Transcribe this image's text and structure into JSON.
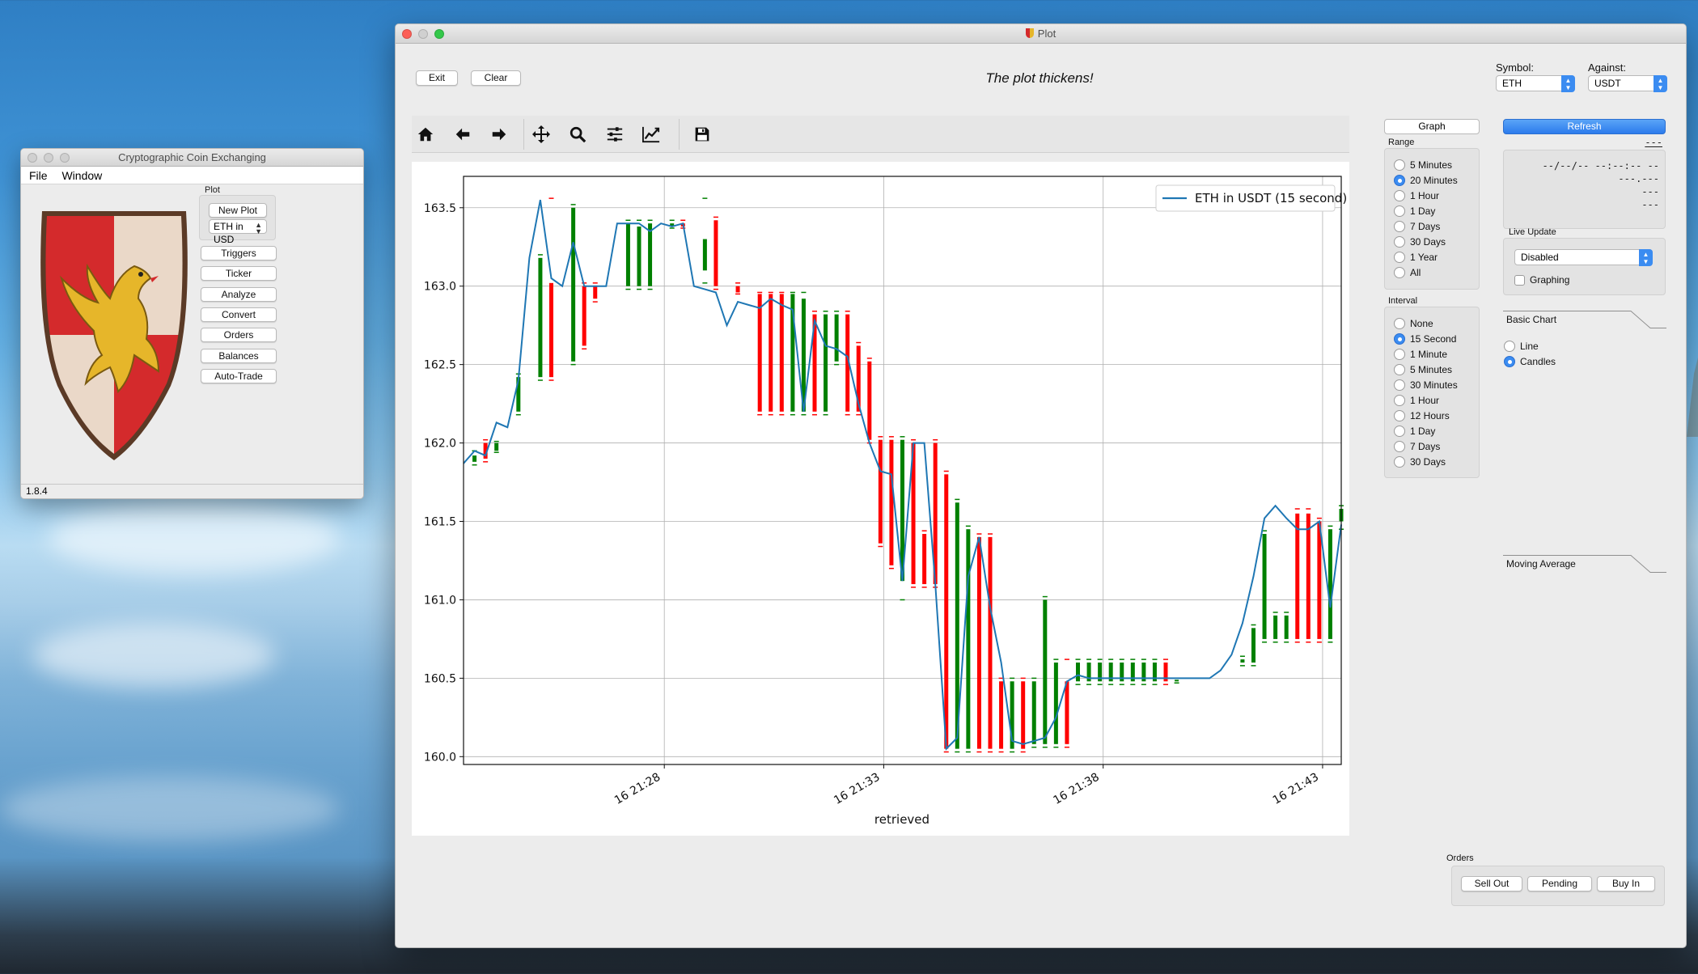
{
  "coin_window": {
    "title": "Cryptographic Coin Exchanging",
    "menu": [
      "File",
      "Window"
    ],
    "plot_group_label": "Plot",
    "new_plot_label": "New Plot",
    "plot_selector_value": "ETH in USD",
    "buttons": [
      "Triggers",
      "Ticker",
      "Analyze",
      "Convert",
      "Orders",
      "Balances",
      "Auto-Trade"
    ],
    "version": "1.8.4"
  },
  "plot_window": {
    "title": "Plot",
    "exit_label": "Exit",
    "clear_label": "Clear",
    "headline": "The plot thickens!",
    "symbol_label": "Symbol:",
    "symbol_value": "ETH",
    "against_label": "Against:",
    "against_value": "USDT",
    "graph_tab_label": "Graph",
    "range_label": "Range",
    "range_options": [
      "5 Minutes",
      "20 Minutes",
      "1 Hour",
      "1 Day",
      "7 Days",
      "30 Days",
      "1 Year",
      "All"
    ],
    "range_selected": 1,
    "interval_label": "Interval",
    "interval_options": [
      "None",
      "15 Second",
      "1 Minute",
      "5 Minutes",
      "30 Minutes",
      "1 Hour",
      "12 Hours",
      "1 Day",
      "7 Days",
      "30 Days"
    ],
    "interval_selected": 1,
    "refresh_label": "Refresh",
    "refresh_sub": "---",
    "info_lines": [
      "--/--/-- --:--:-- --",
      "---.---",
      "---",
      "---"
    ],
    "live_update_label": "Live Update",
    "live_update_value": "Disabled",
    "graphing_label": "Graphing",
    "basic_chart_label": "Basic Chart",
    "basic_chart_options": [
      "Line",
      "Candles"
    ],
    "basic_chart_selected": 1,
    "moving_average_label": "Moving Average",
    "orders_label": "Orders",
    "sell_out_label": "Sell Out",
    "pending_label": "Pending",
    "buy_in_label": "Buy In"
  },
  "chart_data": {
    "type": "line",
    "title": "",
    "xlabel": "retrieved",
    "ylabel": "",
    "ylim": [
      159.95,
      163.7
    ],
    "xlim": [
      0,
      80
    ],
    "yticks": [
      160.0,
      160.5,
      161.0,
      161.5,
      162.0,
      162.5,
      163.0,
      163.5
    ],
    "xticks": [
      {
        "x": 18.3,
        "label": "16 21:28"
      },
      {
        "x": 38.3,
        "label": "16 21:33"
      },
      {
        "x": 58.3,
        "label": "16 21:38"
      },
      {
        "x": 78.3,
        "label": "16 21:43"
      }
    ],
    "legend": {
      "position": "top-right",
      "entries": [
        "ETH in USDT (15 second)"
      ]
    },
    "grid": true,
    "colors": {
      "line": "#1f77b4",
      "up": "#008000",
      "down": "#ff0000"
    },
    "series": [
      {
        "name": "ETH in USDT (15 second)",
        "values": [
          161.87,
          161.95,
          161.92,
          162.13,
          162.1,
          162.4,
          163.18,
          163.55,
          163.05,
          163.0,
          163.28,
          163.0,
          163.0,
          163.0,
          163.4,
          163.4,
          163.4,
          163.35,
          163.4,
          163.38,
          163.4,
          163.0,
          162.98,
          162.96,
          162.75,
          162.9,
          162.88,
          162.86,
          162.92,
          162.88,
          162.85,
          162.2,
          162.78,
          162.62,
          162.6,
          162.55,
          162.25,
          162.0,
          161.82,
          161.8,
          161.12,
          162.0,
          162.0,
          161.1,
          160.05,
          160.12,
          161.15,
          161.4,
          160.95,
          160.6,
          160.1,
          160.08,
          160.1,
          160.12,
          160.25,
          160.48,
          160.52,
          160.5,
          160.5,
          160.5,
          160.5,
          160.5,
          160.5,
          160.5,
          160.5,
          160.5,
          160.5,
          160.5,
          160.5,
          160.55,
          160.65,
          160.85,
          161.15,
          161.52,
          161.6,
          161.52,
          161.45,
          161.45,
          161.5,
          160.95,
          161.48
        ]
      }
    ],
    "candles": [
      {
        "i": 1,
        "o": 161.88,
        "c": 161.92,
        "h": 161.95,
        "l": 161.86
      },
      {
        "i": 2,
        "o": 162.0,
        "c": 161.9,
        "h": 162.02,
        "l": 161.88
      },
      {
        "i": 3,
        "o": 161.95,
        "c": 162.0,
        "h": 162.01,
        "l": 161.94
      },
      {
        "i": 5,
        "o": 162.2,
        "c": 162.42,
        "h": 162.44,
        "l": 162.18
      },
      {
        "i": 7,
        "o": 162.42,
        "c": 163.18,
        "h": 163.2,
        "l": 162.4
      },
      {
        "i": 8,
        "o": 163.02,
        "c": 162.42,
        "h": 163.56,
        "l": 162.4
      },
      {
        "i": 10,
        "o": 162.52,
        "c": 163.5,
        "h": 163.52,
        "l": 162.5
      },
      {
        "i": 11,
        "o": 163.0,
        "c": 162.62,
        "h": 163.02,
        "l": 162.6
      },
      {
        "i": 12,
        "o": 163.0,
        "c": 162.92,
        "h": 163.02,
        "l": 162.9
      },
      {
        "i": 15,
        "o": 163.0,
        "c": 163.4,
        "h": 163.42,
        "l": 162.98
      },
      {
        "i": 16,
        "o": 163.0,
        "c": 163.38,
        "h": 163.42,
        "l": 162.98
      },
      {
        "i": 17,
        "o": 163.0,
        "c": 163.4,
        "h": 163.42,
        "l": 162.98
      },
      {
        "i": 19,
        "o": 163.38,
        "c": 163.4,
        "h": 163.42,
        "l": 163.37
      },
      {
        "i": 20,
        "o": 163.4,
        "c": 163.38,
        "h": 163.42,
        "l": 163.37
      },
      {
        "i": 22,
        "o": 163.1,
        "c": 163.3,
        "h": 163.56,
        "l": 163.02
      },
      {
        "i": 23,
        "o": 163.42,
        "c": 163.0,
        "h": 163.44,
        "l": 162.98
      },
      {
        "i": 25,
        "o": 163.0,
        "c": 162.96,
        "h": 163.02,
        "l": 162.95
      },
      {
        "i": 27,
        "o": 162.95,
        "c": 162.2,
        "h": 162.96,
        "l": 162.18
      },
      {
        "i": 28,
        "o": 162.95,
        "c": 162.2,
        "h": 162.96,
        "l": 162.18
      },
      {
        "i": 29,
        "o": 162.95,
        "c": 162.2,
        "h": 162.96,
        "l": 162.18
      },
      {
        "i": 30,
        "o": 162.2,
        "c": 162.95,
        "h": 162.96,
        "l": 162.18
      },
      {
        "i": 31,
        "o": 162.2,
        "c": 162.92,
        "h": 162.96,
        "l": 162.18
      },
      {
        "i": 32,
        "o": 162.82,
        "c": 162.2,
        "h": 162.84,
        "l": 162.18
      },
      {
        "i": 33,
        "o": 162.2,
        "c": 162.82,
        "h": 162.84,
        "l": 162.18
      },
      {
        "i": 34,
        "o": 162.52,
        "c": 162.82,
        "h": 162.84,
        "l": 162.5
      },
      {
        "i": 35,
        "o": 162.82,
        "c": 162.2,
        "h": 162.84,
        "l": 162.18
      },
      {
        "i": 36,
        "o": 162.62,
        "c": 162.2,
        "h": 162.64,
        "l": 162.18
      },
      {
        "i": 37,
        "o": 162.52,
        "c": 162.02,
        "h": 162.54,
        "l": 162.0
      },
      {
        "i": 38,
        "o": 162.02,
        "c": 161.36,
        "h": 162.04,
        "l": 161.34
      },
      {
        "i": 39,
        "o": 162.02,
        "c": 161.22,
        "h": 162.04,
        "l": 161.2
      },
      {
        "i": 40,
        "o": 161.12,
        "c": 162.02,
        "h": 162.04,
        "l": 161.0
      },
      {
        "i": 41,
        "o": 162.0,
        "c": 161.1,
        "h": 162.02,
        "l": 161.08
      },
      {
        "i": 42,
        "o": 161.42,
        "c": 161.1,
        "h": 161.44,
        "l": 161.08
      },
      {
        "i": 43,
        "o": 162.0,
        "c": 161.1,
        "h": 162.02,
        "l": 161.08
      },
      {
        "i": 44,
        "o": 161.8,
        "c": 160.05,
        "h": 161.82,
        "l": 160.03
      },
      {
        "i": 45,
        "o": 160.05,
        "c": 161.62,
        "h": 161.64,
        "l": 160.03
      },
      {
        "i": 46,
        "o": 160.05,
        "c": 161.45,
        "h": 161.47,
        "l": 160.03
      },
      {
        "i": 47,
        "o": 161.4,
        "c": 160.05,
        "h": 161.42,
        "l": 160.03
      },
      {
        "i": 48,
        "o": 161.4,
        "c": 160.05,
        "h": 161.42,
        "l": 160.03
      },
      {
        "i": 49,
        "o": 160.48,
        "c": 160.05,
        "h": 160.5,
        "l": 160.03
      },
      {
        "i": 50,
        "o": 160.05,
        "c": 160.48,
        "h": 160.5,
        "l": 160.03
      },
      {
        "i": 51,
        "o": 160.48,
        "c": 160.05,
        "h": 160.5,
        "l": 160.03
      },
      {
        "i": 52,
        "o": 160.08,
        "c": 160.48,
        "h": 160.5,
        "l": 160.06
      },
      {
        "i": 53,
        "o": 160.08,
        "c": 161.0,
        "h": 161.02,
        "l": 160.06
      },
      {
        "i": 54,
        "o": 160.08,
        "c": 160.6,
        "h": 160.62,
        "l": 160.06
      },
      {
        "i": 55,
        "o": 160.48,
        "c": 160.08,
        "h": 160.62,
        "l": 160.06
      },
      {
        "i": 56,
        "o": 160.48,
        "c": 160.6,
        "h": 160.62,
        "l": 160.46
      },
      {
        "i": 57,
        "o": 160.48,
        "c": 160.6,
        "h": 160.62,
        "l": 160.46
      },
      {
        "i": 58,
        "o": 160.48,
        "c": 160.6,
        "h": 160.62,
        "l": 160.46
      },
      {
        "i": 59,
        "o": 160.48,
        "c": 160.6,
        "h": 160.62,
        "l": 160.46
      },
      {
        "i": 60,
        "o": 160.48,
        "c": 160.6,
        "h": 160.62,
        "l": 160.46
      },
      {
        "i": 61,
        "o": 160.48,
        "c": 160.6,
        "h": 160.62,
        "l": 160.46
      },
      {
        "i": 62,
        "o": 160.48,
        "c": 160.6,
        "h": 160.62,
        "l": 160.46
      },
      {
        "i": 63,
        "o": 160.48,
        "c": 160.6,
        "h": 160.62,
        "l": 160.46
      },
      {
        "i": 64,
        "o": 160.6,
        "c": 160.48,
        "h": 160.62,
        "l": 160.46
      },
      {
        "i": 65,
        "o": 160.48,
        "c": 160.49,
        "h": 160.5,
        "l": 160.47
      },
      {
        "i": 71,
        "o": 160.6,
        "c": 160.62,
        "h": 160.64,
        "l": 160.58
      },
      {
        "i": 72,
        "o": 160.6,
        "c": 160.82,
        "h": 160.84,
        "l": 160.58
      },
      {
        "i": 73,
        "o": 160.75,
        "c": 161.42,
        "h": 161.44,
        "l": 160.73
      },
      {
        "i": 74,
        "o": 160.75,
        "c": 160.9,
        "h": 160.92,
        "l": 160.73
      },
      {
        "i": 75,
        "o": 160.75,
        "c": 160.9,
        "h": 160.92,
        "l": 160.73
      },
      {
        "i": 76,
        "o": 161.55,
        "c": 160.75,
        "h": 161.58,
        "l": 160.73
      },
      {
        "i": 77,
        "o": 161.55,
        "c": 160.75,
        "h": 161.58,
        "l": 160.73
      },
      {
        "i": 78,
        "o": 161.5,
        "c": 160.75,
        "h": 161.52,
        "l": 160.73
      },
      {
        "i": 79,
        "o": 160.75,
        "c": 161.45,
        "h": 161.47,
        "l": 160.73
      },
      {
        "i": 80,
        "o": 161.5,
        "c": 161.58,
        "h": 161.6,
        "l": 161.45
      }
    ]
  }
}
